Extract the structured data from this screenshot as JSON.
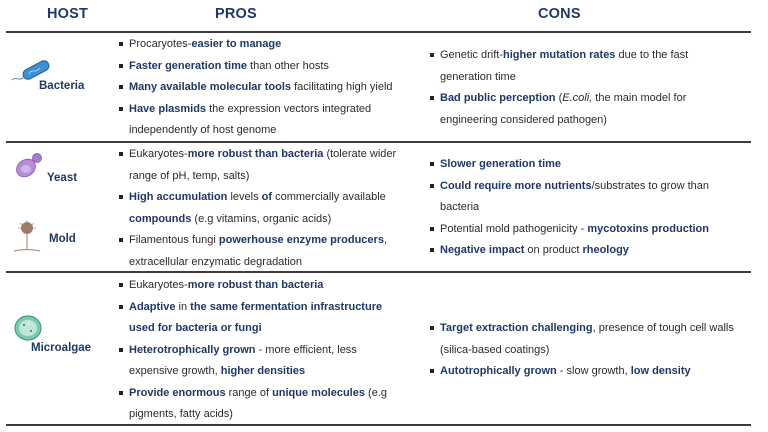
{
  "headers": {
    "host": "HOST",
    "pros": "PROS",
    "cons": "CONS"
  },
  "colors": {
    "accent": "#1f3864",
    "text": "#2b2b2b",
    "rule": "#3c3c3c"
  },
  "rows": [
    {
      "host": "Bacteria",
      "icon": "bacteria-icon",
      "pros": [
        [
          {
            "t": "Procaryotes-",
            "b": false
          },
          {
            "t": "easier to manage",
            "b": true
          }
        ],
        [
          {
            "t": "Faster generation time",
            "b": true
          },
          {
            "t": " than other hosts",
            "b": false
          }
        ],
        [
          {
            "t": "Many available molecular tools",
            "b": true
          },
          {
            "t": " facilitating high yield",
            "b": false
          }
        ],
        [
          {
            "t": "Have plasmids",
            "b": true
          },
          {
            "t": " the expression vectors integrated independently of host genome",
            "b": false
          }
        ]
      ],
      "cons": [
        [
          {
            "t": "Genetic drift-",
            "b": false
          },
          {
            "t": "higher mutation rates",
            "b": true
          },
          {
            "t": " due to the fast generation time",
            "b": false
          }
        ],
        [
          {
            "t": "Bad public perception",
            "b": true
          },
          {
            "t": " (",
            "b": false
          },
          {
            "t": "E.coli,",
            "i": true
          },
          {
            "t": " the main model for engineering considered pathogen)",
            "b": false
          }
        ]
      ]
    },
    {
      "hosts": [
        {
          "host": "Yeast",
          "icon": "yeast-icon"
        },
        {
          "host": "Mold",
          "icon": "mold-icon"
        }
      ],
      "pros": [
        [
          {
            "t": "Eukaryotes-",
            "b": false
          },
          {
            "t": "more robust than bacteria",
            "b": true
          },
          {
            "t": " (tolerate wider range of pH, temp, salts)",
            "b": false
          }
        ],
        [
          {
            "t": "High accumulation",
            "b": true
          },
          {
            "t": " levels ",
            "b": false
          },
          {
            "t": "of",
            "b": true
          },
          {
            "t": " commercially available ",
            "b": false
          },
          {
            "t": "compounds",
            "b": true
          },
          {
            "t": " (e.g vitamins, organic acids)",
            "b": false
          }
        ],
        [
          {
            "t": "Filamentous fungi ",
            "b": false
          },
          {
            "t": "powerhouse enzyme producers",
            "b": true
          },
          {
            "t": ", extracellular enzymatic degradation",
            "b": false
          }
        ]
      ],
      "cons": [
        [
          {
            "t": "Slower generation time",
            "b": true
          }
        ],
        [
          {
            "t": "Could require more nutrients",
            "b": true
          },
          {
            "t": "/substrates to grow than bacteria",
            "b": false
          }
        ],
        [
          {
            "t": "Potential mold pathogenicity - ",
            "b": false
          },
          {
            "t": "mycotoxins production",
            "b": true
          }
        ],
        [
          {
            "t": "Negative impact",
            "b": true
          },
          {
            "t": " on product ",
            "b": false
          },
          {
            "t": "rheology",
            "b": true
          }
        ]
      ]
    },
    {
      "host": "Microalgae",
      "icon": "microalgae-icon",
      "pros": [
        [
          {
            "t": "Eukaryotes-",
            "b": false
          },
          {
            "t": "more robust than bacteria",
            "b": true
          }
        ],
        [
          {
            "t": "Adaptive",
            "b": true
          },
          {
            "t": " in ",
            "b": false
          },
          {
            "t": "the same fermentation infrastructure used for bacteria or fungi",
            "b": true
          }
        ],
        [
          {
            "t": "Heterotrophically grown",
            "b": true
          },
          {
            "t": " - more efficient, less expensive growth, ",
            "b": false
          },
          {
            "t": "higher densities",
            "b": true
          }
        ],
        [
          {
            "t": "Provide enormous",
            "b": true
          },
          {
            "t": " range of ",
            "b": false
          },
          {
            "t": "unique molecules",
            "b": true
          },
          {
            "t": " (e.g pigments, fatty acids)",
            "b": false
          }
        ]
      ],
      "cons": [
        [
          {
            "t": "Target extraction challenging",
            "b": true
          },
          {
            "t": ", presence of tough cell walls (silica-based coatings)",
            "b": false
          }
        ],
        [
          {
            "t": "Autotrophically grown",
            "b": true
          },
          {
            "t": " - slow growth, ",
            "b": false
          },
          {
            "t": "low density",
            "b": true
          }
        ]
      ]
    }
  ]
}
